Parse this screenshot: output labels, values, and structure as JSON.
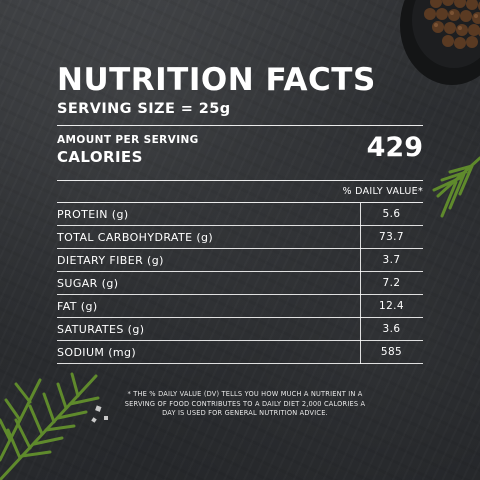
{
  "label": {
    "title": "NUTRITION FACTS",
    "serving": "SERVING SIZE = 25g",
    "amount_per_serving": "AMOUNT PER SERVING",
    "calories_label": "CALORIES",
    "calories_value": "429",
    "dv_header": "% DAILY VALUE*"
  },
  "nutrients": [
    {
      "name": "PROTEIN (g)",
      "value": "5.6"
    },
    {
      "name": "TOTAL CARBOHYDRATE (g)",
      "value": "73.7"
    },
    {
      "name": "DIETARY FIBER (g)",
      "value": "3.7"
    },
    {
      "name": "SUGAR (g)",
      "value": "7.2"
    },
    {
      "name": "FAT (g)",
      "value": "12.4"
    },
    {
      "name": "SATURATES (g)",
      "value": "3.6"
    },
    {
      "name": "SODIUM (mg)",
      "value": "585"
    }
  ],
  "footnote": "* THE % DAILY VALUE (DV) TELLS YOU HOW MUCH A NUTRIENT IN A SERVING OF FOOD CONTRIBUTES TO A DAILY DIET 2,000 CALORIES A DAY IS USED FOR GENERAL NUTRITION ADVICE.",
  "colors": {
    "background": "#2a2c2e",
    "text": "#ffffff",
    "rosemary": "#5f8a2c",
    "peppercorn": "#5a3a22"
  },
  "decor": {
    "top_right": "peppercorn-bowl",
    "right": "rosemary-sprig",
    "bottom_left": "rosemary-sprig"
  }
}
